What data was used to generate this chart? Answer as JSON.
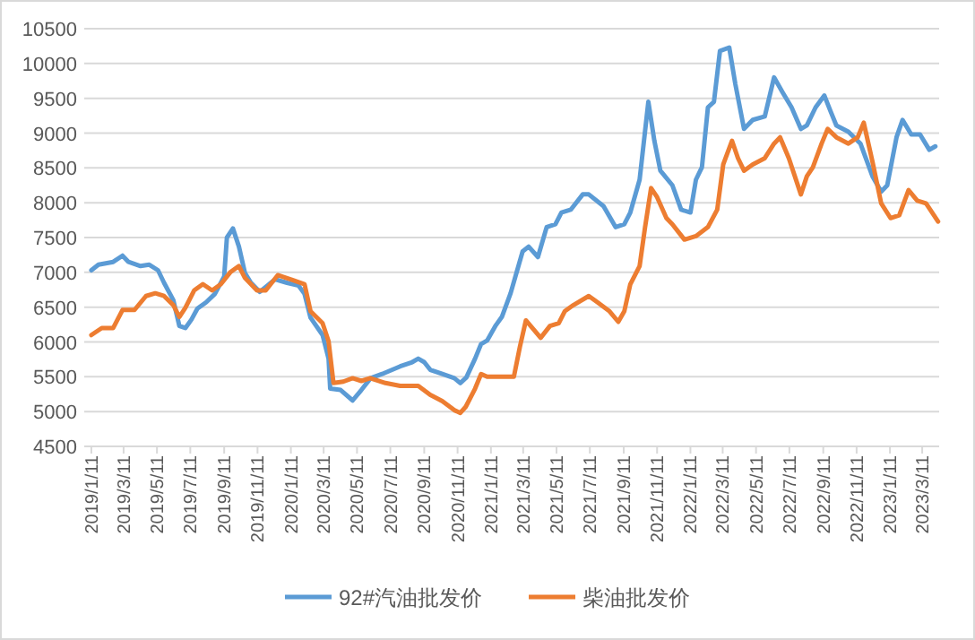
{
  "chart_data": {
    "type": "line",
    "xlim": [
      "2018-12-29",
      "2023-04-11"
    ],
    "ylim": [
      4500,
      10500
    ],
    "yticks": [
      4500,
      5000,
      5500,
      6000,
      6500,
      7000,
      7500,
      8000,
      8500,
      9000,
      9500,
      10000,
      10500
    ],
    "xticks": [
      {
        "value": "2019-01-11",
        "label": "2019/1/11"
      },
      {
        "value": "2019-03-11",
        "label": "2019/3/11"
      },
      {
        "value": "2019-05-11",
        "label": "2019/5/11"
      },
      {
        "value": "2019-07-11",
        "label": "2019/7/11"
      },
      {
        "value": "2019-09-11",
        "label": "2019/9/11"
      },
      {
        "value": "2019-11-11",
        "label": "2019/11/11"
      },
      {
        "value": "2020-01-11",
        "label": "2020/1/11"
      },
      {
        "value": "2020-03-11",
        "label": "2020/3/11"
      },
      {
        "value": "2020-05-11",
        "label": "2020/5/11"
      },
      {
        "value": "2020-07-11",
        "label": "2020/7/11"
      },
      {
        "value": "2020-09-11",
        "label": "2020/9/11"
      },
      {
        "value": "2020-11-11",
        "label": "2020/11/11"
      },
      {
        "value": "2021-01-11",
        "label": "2021/1/11"
      },
      {
        "value": "2021-03-11",
        "label": "2021/3/11"
      },
      {
        "value": "2021-05-11",
        "label": "2021/5/11"
      },
      {
        "value": "2021-07-11",
        "label": "2021/7/11"
      },
      {
        "value": "2021-09-11",
        "label": "2021/9/11"
      },
      {
        "value": "2021-11-11",
        "label": "2021/11/11"
      },
      {
        "value": "2022-01-11",
        "label": "2022/1/11"
      },
      {
        "value": "2022-03-11",
        "label": "2022/3/11"
      },
      {
        "value": "2022-05-11",
        "label": "2022/5/11"
      },
      {
        "value": "2022-07-11",
        "label": "2022/7/11"
      },
      {
        "value": "2022-09-11",
        "label": "2022/9/11"
      },
      {
        "value": "2022-11-11",
        "label": "2022/11/11"
      },
      {
        "value": "2023-01-11",
        "label": "2023/1/11"
      },
      {
        "value": "2023-03-11",
        "label": "2023/3/11"
      }
    ],
    "grid": "y",
    "legend": "bottom",
    "series": [
      {
        "name": "92#汽油批发价",
        "color": "#5b9bd5",
        "x": [
          "2019-01-11",
          "2019-01-24",
          "2019-02-20",
          "2019-03-09",
          "2019-03-20",
          "2019-04-11",
          "2019-04-27",
          "2019-05-13",
          "2019-05-24",
          "2019-06-10",
          "2019-06-21",
          "2019-07-02",
          "2019-07-13",
          "2019-07-24",
          "2019-08-09",
          "2019-08-25",
          "2019-09-11",
          "2019-09-16",
          "2019-09-27",
          "2019-10-08",
          "2019-10-19",
          "2019-10-30",
          "2019-11-15",
          "2019-12-13",
          "2020-01-04",
          "2020-01-25",
          "2020-02-05",
          "2020-02-16",
          "2020-03-09",
          "2020-03-20",
          "2020-03-23",
          "2020-04-11",
          "2020-05-03",
          "2020-05-19",
          "2020-06-05",
          "2020-06-26",
          "2020-07-29",
          "2020-08-20",
          "2020-08-31",
          "2020-09-11",
          "2020-09-22",
          "2020-10-14",
          "2020-11-05",
          "2020-11-16",
          "2020-11-27",
          "2020-12-13",
          "2020-12-24",
          "2021-01-04",
          "2021-01-20",
          "2021-01-31",
          "2021-02-16",
          "2021-03-10",
          "2021-03-21",
          "2021-04-07",
          "2021-04-23",
          "2021-05-09",
          "2021-05-20",
          "2021-06-06",
          "2021-06-28",
          "2021-07-09",
          "2021-08-05",
          "2021-08-27",
          "2021-09-12",
          "2021-09-23",
          "2021-10-10",
          "2021-10-26",
          "2021-11-06",
          "2021-11-17",
          "2021-12-09",
          "2021-12-25",
          "2022-01-11",
          "2022-01-21",
          "2022-02-01",
          "2022-02-12",
          "2022-02-23",
          "2022-03-06",
          "2022-03-23",
          "2022-04-03",
          "2022-04-19",
          "2022-05-05",
          "2022-05-27",
          "2022-06-13",
          "2022-06-29",
          "2022-07-15",
          "2022-08-01",
          "2022-08-12",
          "2022-08-28",
          "2022-09-13",
          "2022-09-24",
          "2022-10-05",
          "2022-10-27",
          "2022-11-18",
          "2022-12-10",
          "2022-12-26",
          "2023-01-06",
          "2023-01-23",
          "2023-02-03",
          "2023-02-19",
          "2023-03-07",
          "2023-03-24",
          "2023-04-04"
        ],
        "values": [
          7030,
          7110,
          7150,
          7240,
          7150,
          7090,
          7110,
          7030,
          6850,
          6600,
          6230,
          6200,
          6320,
          6480,
          6570,
          6690,
          6940,
          7500,
          7630,
          7370,
          6990,
          6850,
          6720,
          6900,
          6850,
          6810,
          6690,
          6350,
          6100,
          5760,
          5330,
          5310,
          5160,
          5310,
          5480,
          5540,
          5650,
          5710,
          5760,
          5710,
          5600,
          5540,
          5480,
          5410,
          5490,
          5760,
          5970,
          6020,
          6240,
          6360,
          6700,
          7300,
          7370,
          7220,
          7650,
          7690,
          7860,
          7900,
          8120,
          8120,
          7950,
          7650,
          7690,
          7860,
          8330,
          9450,
          8890,
          8460,
          8250,
          7900,
          7860,
          8330,
          8510,
          9370,
          9450,
          10180,
          10230,
          9710,
          9060,
          9190,
          9240,
          9800,
          9580,
          9370,
          9060,
          9110,
          9370,
          9540,
          9320,
          9110,
          9020,
          8850,
          8380,
          8160,
          8250,
          8940,
          9190,
          8980,
          8980,
          8760,
          8810
        ]
      },
      {
        "name": "柴油批发价",
        "color": "#ed7d31",
        "x": [
          "2019-01-11",
          "2019-01-30",
          "2019-02-20",
          "2019-03-09",
          "2019-03-31",
          "2019-04-21",
          "2019-05-08",
          "2019-05-24",
          "2019-06-10",
          "2019-06-21",
          "2019-07-02",
          "2019-07-18",
          "2019-08-03",
          "2019-08-20",
          "2019-09-05",
          "2019-09-22",
          "2019-10-08",
          "2019-10-19",
          "2019-11-10",
          "2019-11-26",
          "2019-12-18",
          "2020-01-14",
          "2020-02-05",
          "2020-02-16",
          "2020-03-09",
          "2020-03-20",
          "2020-03-29",
          "2020-04-16",
          "2020-05-03",
          "2020-05-19",
          "2020-06-04",
          "2020-07-02",
          "2020-07-29",
          "2020-08-31",
          "2020-09-22",
          "2020-10-14",
          "2020-11-05",
          "2020-11-16",
          "2020-11-26",
          "2020-12-13",
          "2020-12-24",
          "2021-01-04",
          "2021-01-20",
          "2021-02-22",
          "2021-03-05",
          "2021-03-16",
          "2021-04-12",
          "2021-04-29",
          "2021-05-15",
          "2021-05-26",
          "2021-06-11",
          "2021-07-09",
          "2021-07-25",
          "2021-08-16",
          "2021-09-01",
          "2021-09-12",
          "2021-09-23",
          "2021-10-10",
          "2021-10-20",
          "2021-10-31",
          "2021-11-11",
          "2021-11-28",
          "2021-12-09",
          "2021-12-31",
          "2022-01-21",
          "2022-02-12",
          "2022-03-01",
          "2022-03-12",
          "2022-03-28",
          "2022-04-08",
          "2022-04-19",
          "2022-05-05",
          "2022-05-27",
          "2022-06-13",
          "2022-06-24",
          "2022-07-10",
          "2022-08-01",
          "2022-08-12",
          "2022-08-23",
          "2022-09-08",
          "2022-09-19",
          "2022-10-05",
          "2022-10-27",
          "2022-11-13",
          "2022-11-24",
          "2022-12-10",
          "2022-12-26",
          "2023-01-12",
          "2023-01-28",
          "2023-02-14",
          "2023-03-02",
          "2023-03-18",
          "2023-04-09"
        ],
        "values": [
          6100,
          6200,
          6200,
          6460,
          6460,
          6660,
          6700,
          6660,
          6530,
          6360,
          6490,
          6740,
          6830,
          6740,
          6830,
          7000,
          7090,
          6920,
          6740,
          6740,
          6960,
          6890,
          6830,
          6440,
          6270,
          6010,
          5410,
          5430,
          5480,
          5440,
          5480,
          5410,
          5370,
          5370,
          5240,
          5150,
          5020,
          4980,
          5070,
          5330,
          5540,
          5500,
          5500,
          5500,
          5930,
          6310,
          6060,
          6230,
          6270,
          6440,
          6530,
          6660,
          6570,
          6440,
          6290,
          6440,
          6830,
          7090,
          7650,
          8210,
          8080,
          7780,
          7690,
          7470,
          7520,
          7650,
          7900,
          8550,
          8890,
          8640,
          8460,
          8550,
          8640,
          8850,
          8940,
          8640,
          8120,
          8380,
          8510,
          8850,
          9060,
          8940,
          8850,
          8940,
          9150,
          8590,
          7990,
          7780,
          7820,
          8180,
          8030,
          7990,
          7730
        ]
      }
    ]
  }
}
